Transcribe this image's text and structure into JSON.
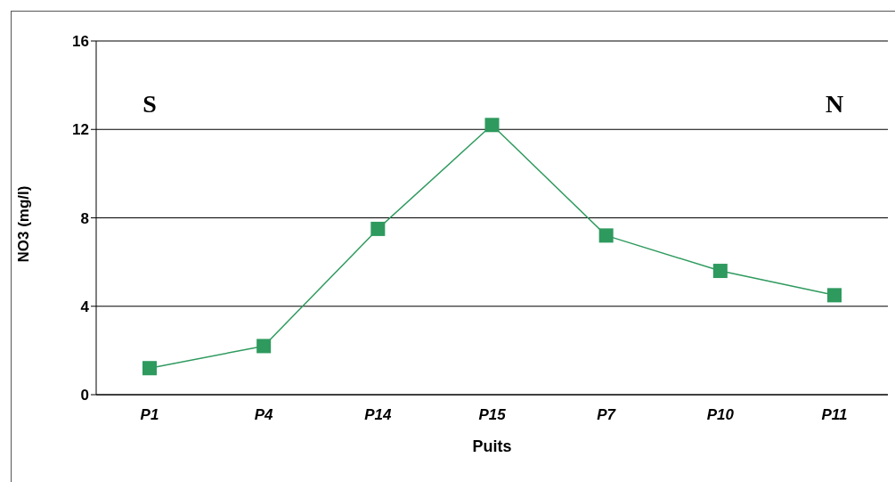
{
  "chart_data": {
    "type": "line",
    "xlabel": "Puits",
    "ylabel": "NO3 (mg/l)",
    "categories": [
      "P1",
      "P4",
      "P14",
      "P15",
      "P7",
      "P10",
      "P11"
    ],
    "series": [
      {
        "color": "#2e9a5e",
        "values": [
          1.2,
          2.2,
          7.5,
          12.2,
          7.2,
          5.6,
          4.5
        ]
      }
    ],
    "ylim": [
      0,
      16
    ],
    "yticks": [
      0,
      4,
      8,
      12,
      16
    ],
    "grid": "y",
    "marker": "square",
    "annotations": [
      "S",
      "N"
    ]
  }
}
